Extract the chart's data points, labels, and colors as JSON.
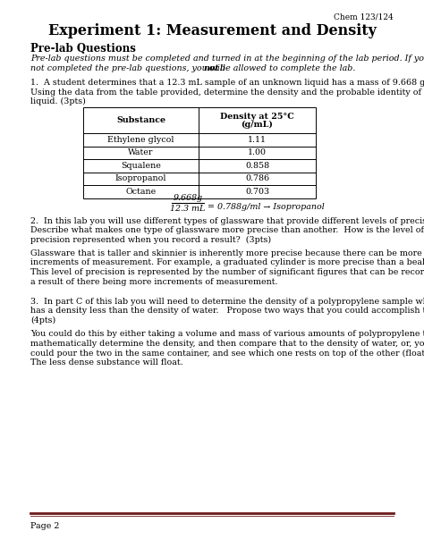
{
  "page_bg": "#ffffff",
  "header_right": "Chem 123/124",
  "title": "Experiment 1: Measurement and Density",
  "section_heading": "Pre-lab Questions",
  "table_headers": [
    "Substance",
    "Density at 25°C",
    "(g/mL)"
  ],
  "table_rows": [
    [
      "Ethylene glycol",
      "1.11"
    ],
    [
      "Water",
      "1.00"
    ],
    [
      "Squalene",
      "0.858"
    ],
    [
      "Isopropanol",
      "0.786"
    ],
    [
      "Octane",
      "0.703"
    ]
  ],
  "footer_line_color": "#6b1a1a",
  "footer_text": "Page 2",
  "font_size_header": 6.5,
  "font_size_title": 11.5,
  "font_size_section": 8.5,
  "font_size_body": 6.8,
  "font_size_table": 6.8,
  "font_size_footer": 6.8
}
